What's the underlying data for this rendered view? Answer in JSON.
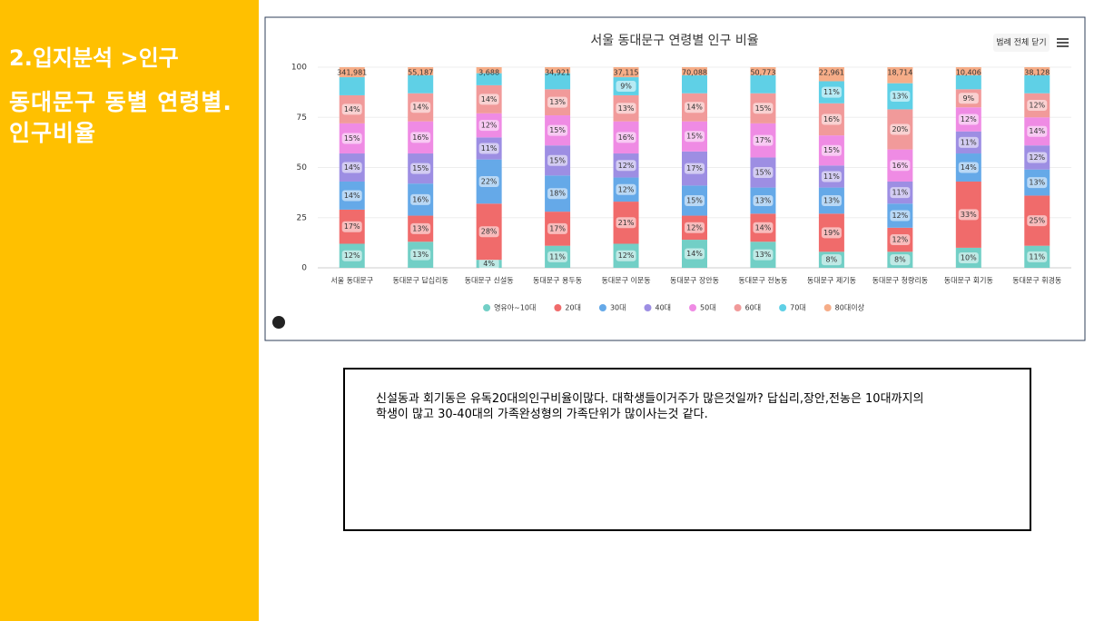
{
  "sidebar": {
    "section": "2.입지분석 >인구",
    "heading": "동대문구 동별 연령별.인구비율"
  },
  "chart_data": {
    "type": "stacked-percent-bar",
    "title": "서울 동대문구 연령별 인구 비율",
    "legend_toggle": "범례 전체 닫기",
    "categories": [
      "서울 동대문구",
      "동대문구 답십리동",
      "동대문구 신설동",
      "동대문구 용두동",
      "동대문구 이문동",
      "동대문구 장안동",
      "동대문구 전농동",
      "동대문구 제기동",
      "동대문구 청량리동",
      "동대문구 회기동",
      "동대문구 휘경동"
    ],
    "stack_totals": {
      "values": [
        341981,
        55187,
        3688,
        34921,
        37115,
        70088,
        50773,
        22961,
        18714,
        10406,
        38128
      ],
      "value_labels": [
        "341,981",
        "55,187",
        "3,688",
        "34,921",
        "37,115",
        "70,088",
        "50,773",
        "22,961",
        "18,714",
        "10,406",
        "38,128"
      ]
    },
    "series": [
      {
        "name": "영유아~10대",
        "color": "#72cfc6",
        "values": [
          12,
          13,
          4,
          11,
          12,
          14,
          13,
          8,
          8,
          10,
          11
        ],
        "value_labels": [
          "12%",
          "13%",
          "4%",
          "11%",
          "12%",
          "14%",
          "13%",
          "8%",
          "8%",
          "10%",
          "11%"
        ]
      },
      {
        "name": "20대",
        "color": "#f06b6b",
        "values": [
          17,
          13,
          28,
          17,
          21,
          12,
          14,
          19,
          12,
          33,
          25
        ],
        "value_labels": [
          "17%",
          "13%",
          "28%",
          "17%",
          "21%",
          "12%",
          "14%",
          "19%",
          "12%",
          "33%",
          "25%"
        ]
      },
      {
        "name": "30대",
        "color": "#65a9e8",
        "values": [
          14,
          16,
          22,
          18,
          12,
          15,
          13,
          13,
          12,
          14,
          13
        ],
        "value_labels": [
          "14%",
          "16%",
          "22%",
          "18%",
          "12%",
          "15%",
          "13%",
          "13%",
          "12%",
          "14%",
          "13%"
        ]
      },
      {
        "name": "40대",
        "color": "#9d8ee3",
        "values": [
          14,
          15,
          11,
          15,
          12,
          17,
          15,
          11,
          11,
          11,
          12
        ],
        "value_labels": [
          "14%",
          "15%",
          "11%",
          "15%",
          "12%",
          "17%",
          "15%",
          "11%",
          "11%",
          "11%",
          "12%"
        ]
      },
      {
        "name": "50대",
        "color": "#ef8be4",
        "values": [
          15,
          16,
          12,
          15,
          16,
          15,
          17,
          15,
          16,
          12,
          14
        ],
        "value_labels": [
          "15%",
          "16%",
          "12%",
          "15%",
          "16%",
          "15%",
          "17%",
          "15%",
          "16%",
          "12%",
          "14%"
        ]
      },
      {
        "name": "60대",
        "color": "#f19a9a",
        "values": [
          14,
          14,
          14,
          13,
          13,
          14,
          15,
          16,
          20,
          9,
          12
        ],
        "value_labels": [
          "14%",
          "14%",
          "14%",
          "13%",
          "13%",
          "14%",
          "15%",
          "16%",
          "20%",
          "9%",
          "12%"
        ]
      },
      {
        "name": "70대",
        "color": "#5fd0e6",
        "values": [
          9,
          9,
          6,
          8,
          9,
          9,
          9,
          11,
          13,
          7,
          9
        ],
        "value_labels": [
          null,
          null,
          null,
          null,
          "9%",
          null,
          null,
          "11%",
          "13%",
          null,
          null
        ]
      },
      {
        "name": "80대이상",
        "color": "#f6ad88",
        "values": [
          5,
          4,
          3,
          3,
          5,
          4,
          4,
          7,
          8,
          4,
          4
        ],
        "value_labels": [
          null,
          null,
          null,
          null,
          null,
          null,
          null,
          null,
          null,
          null,
          null
        ]
      }
    ],
    "ylim": [
      0,
      100
    ],
    "yticks": [
      0,
      25,
      50,
      75,
      100
    ],
    "grid": true
  },
  "note": {
    "lines": [
      "신설동과 회기동은 유독20대의인구비율이많다. 대학생들이거주가 많은것일까? 답십리,장안,전농은 10대까지의",
      "학생이 많고 30-40대의 가족완성형의 가족단위가 많이사는것 같다."
    ]
  }
}
